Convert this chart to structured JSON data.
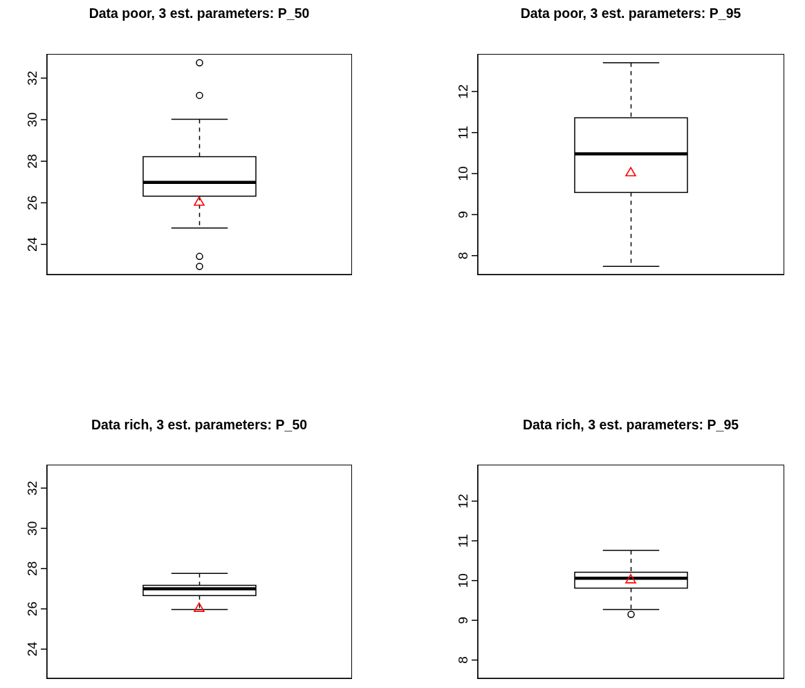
{
  "chart_data": [
    {
      "type": "box",
      "title": "Data poor, 3 est. parameters: P_50",
      "categories": [
        null
      ],
      "boxes": [
        {
          "low": 24.79,
          "q1": 26.32,
          "median": 26.98,
          "q3": 28.22,
          "high": 30.02,
          "outliers": [
            32.74,
            31.17,
            23.42,
            22.94
          ]
        }
      ],
      "series": [
        {
          "type": "scatter",
          "color": "#ff0000",
          "marker": "triangle",
          "values": [
            26.05
          ]
        }
      ],
      "ylim": [
        22.55,
        33.13
      ],
      "yticks": [
        24,
        26,
        28,
        30,
        32
      ],
      "tick_labels": "y"
    },
    {
      "type": "box",
      "title": "Data poor, 3 est. parameters: P_95",
      "categories": [
        null
      ],
      "boxes": [
        {
          "low": 7.74,
          "q1": 9.54,
          "median": 10.48,
          "q3": 11.36,
          "high": 12.7
        }
      ],
      "series": [
        {
          "type": "scatter",
          "color": "#ff0000",
          "marker": "triangle",
          "values": [
            10.03
          ]
        }
      ],
      "ylim": [
        7.54,
        12.9
      ],
      "yticks": [
        8,
        9,
        10,
        11,
        12
      ],
      "tick_labels": "y"
    },
    {
      "type": "box",
      "title": "Data rich, 3 est. parameters: P_50",
      "categories": [
        null
      ],
      "boxes": [
        {
          "low": 25.97,
          "q1": 26.66,
          "median": 27.0,
          "q3": 27.17,
          "high": 27.76
        }
      ],
      "series": [
        {
          "type": "scatter",
          "color": "#ff0000",
          "marker": "triangle",
          "values": [
            26.05
          ]
        }
      ],
      "ylim": [
        22.55,
        33.13
      ],
      "yticks": [
        24,
        26,
        28,
        30,
        32
      ],
      "tick_labels": "y"
    },
    {
      "type": "box",
      "title": "Data rich, 3 est. parameters: P_95",
      "categories": [
        null
      ],
      "boxes": [
        {
          "low": 9.27,
          "q1": 9.81,
          "median": 10.06,
          "q3": 10.21,
          "high": 10.76,
          "outliers": [
            9.15
          ]
        }
      ],
      "series": [
        {
          "type": "scatter",
          "color": "#ff0000",
          "marker": "triangle",
          "values": [
            10.03
          ]
        }
      ],
      "ylim": [
        7.54,
        12.9
      ],
      "yticks": [
        8,
        9,
        10,
        11,
        12
      ],
      "tick_labels": "y"
    }
  ]
}
